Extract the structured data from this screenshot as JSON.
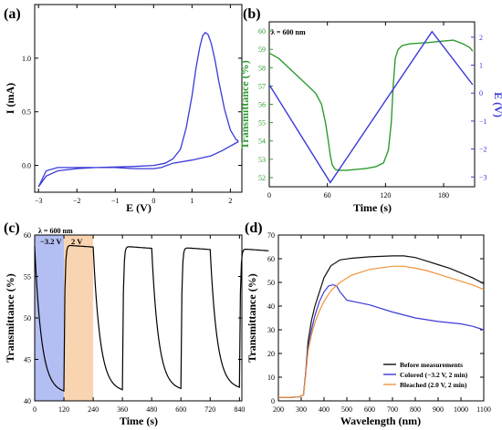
{
  "chart_data": [
    {
      "panel_label": "(a)",
      "type": "line",
      "xlabel": "E (V)",
      "ylabel": "I (mA)",
      "xlim": [
        -3.1,
        2.3
      ],
      "ylim": [
        -0.25,
        1.5
      ],
      "xticks": [
        -3,
        -2,
        -1,
        0,
        1,
        2
      ],
      "xtick_labels": [
        "−3",
        "−2",
        "−1",
        "0",
        "1",
        "2"
      ],
      "yticks": [
        0.0,
        0.5,
        1.0
      ],
      "ytick_labels": [
        "0.0",
        "0.5",
        "1.0"
      ],
      "colors": {
        "curve": "#3a3ad8"
      },
      "series": [
        {
          "x": [
            -3.0,
            -2.8,
            -2.5,
            -2.0,
            -1.5,
            -1.0,
            -0.5,
            0.0,
            0.3,
            0.5,
            0.7,
            0.85,
            1.0,
            1.1,
            1.2,
            1.28,
            1.35,
            1.42,
            1.5,
            1.6,
            1.7,
            1.85,
            2.0,
            2.15,
            2.2,
            2.2,
            2.1,
            1.8,
            1.5,
            1.0,
            0.5,
            0.2,
            0.0,
            -0.5,
            -1.0,
            -1.5,
            -2.0,
            -2.5,
            -2.8,
            -3.0
          ],
          "y": [
            -0.2,
            -0.1,
            -0.05,
            -0.03,
            -0.02,
            -0.015,
            -0.01,
            0.0,
            0.02,
            0.06,
            0.15,
            0.35,
            0.65,
            0.9,
            1.1,
            1.21,
            1.24,
            1.22,
            1.14,
            0.98,
            0.78,
            0.52,
            0.33,
            0.24,
            0.23,
            0.22,
            0.2,
            0.14,
            0.09,
            0.05,
            0.02,
            -0.02,
            -0.03,
            -0.03,
            -0.02,
            -0.02,
            -0.02,
            -0.02,
            -0.05,
            -0.2
          ]
        }
      ]
    },
    {
      "panel_label": "(b)",
      "type": "line",
      "annotation": "λ = 600 nm",
      "xlabel": "Time  (s)",
      "ylabel": "Transmittance (%)",
      "ylabel_right": "E (V)",
      "xlim": [
        0,
        212
      ],
      "ylim": [
        51.5,
        60.5
      ],
      "ylim_right": [
        -3.35,
        2.55
      ],
      "xticks": [
        0,
        60,
        120,
        180
      ],
      "xtick_labels": [
        "0",
        "60",
        "120",
        "180"
      ],
      "yticks": [
        52,
        53,
        54,
        55,
        56,
        57,
        58,
        59,
        60
      ],
      "ytick_labels": [
        "52",
        "53",
        "54",
        "55",
        "56",
        "57",
        "58",
        "59",
        "60"
      ],
      "yticks_right": [
        -3,
        -2,
        -1,
        0,
        1,
        2
      ],
      "ytick_labels_right": [
        "−3",
        "−2",
        "−1",
        "0",
        "1",
        "2"
      ],
      "colors": {
        "transmittance": "#2e9b2e",
        "potential": "#3a3ad8",
        "left_axis": "#2e9b2e",
        "right_axis": "#3a3ad8"
      },
      "series": [
        {
          "axis": "left",
          "color_key": "transmittance",
          "x": [
            0,
            10,
            20,
            30,
            40,
            48,
            54,
            58,
            61,
            63,
            65,
            68,
            72,
            80,
            90,
            100,
            110,
            118,
            123,
            126,
            128,
            130,
            133,
            137,
            145,
            160,
            170,
            180,
            190,
            200,
            207,
            210
          ],
          "y": [
            58.8,
            58.5,
            58.0,
            57.5,
            57.0,
            56.6,
            56.0,
            55.0,
            54.0,
            53.2,
            52.7,
            52.45,
            52.4,
            52.4,
            52.45,
            52.5,
            52.6,
            52.8,
            53.5,
            55.0,
            57.0,
            58.5,
            59.0,
            59.2,
            59.3,
            59.35,
            59.4,
            59.45,
            59.5,
            59.3,
            59.1,
            58.9
          ]
        },
        {
          "axis": "right",
          "color_key": "potential",
          "x": [
            0,
            63,
            168,
            210
          ],
          "y": [
            0.3,
            -3.2,
            2.2,
            0.3
          ]
        }
      ]
    },
    {
      "panel_label": "(c)",
      "type": "line",
      "annotation": "λ = 600 nm",
      "band_labels": [
        "−3.2 V",
        "2 V"
      ],
      "bands": [
        [
          0,
          120
        ],
        [
          120,
          240
        ]
      ],
      "xlabel": "Time (s)",
      "ylabel": "Transmittance (%)",
      "xlim": [
        0,
        850
      ],
      "ylim": [
        40,
        60
      ],
      "xticks": [
        0,
        120,
        240,
        360,
        480,
        600,
        720,
        840
      ],
      "xtick_labels": [
        "0",
        "120",
        "240",
        "360",
        "480",
        "600",
        "720",
        "840"
      ],
      "yticks": [
        40,
        45,
        50,
        55,
        60
      ],
      "ytick_labels": [
        "40",
        "45",
        "50",
        "55",
        "60"
      ],
      "colors": {
        "curve": "#000000",
        "band_colored": "#b3bff2",
        "band_bleached": "#f9d4b0"
      },
      "cycle": {
        "period_s": 120,
        "start_value": 58.6,
        "colored_end": 41.2,
        "bleached_plateau": 58.8,
        "bleach_rise_s": 8
      },
      "series": [
        {
          "x": [
            0,
            5,
            10,
            20,
            40,
            60,
            80,
            100,
            120,
            124,
            128,
            135,
            150,
            200,
            240,
            245,
            260,
            290,
            320,
            360,
            364,
            368,
            375,
            400,
            450,
            480,
            485,
            500,
            530,
            560,
            600,
            604,
            608,
            615,
            650,
            700,
            720,
            725,
            740,
            770,
            800,
            835
          ],
          "y": [
            58.6,
            53.5,
            50.5,
            47.5,
            44.8,
            43.3,
            42.4,
            41.8,
            41.2,
            52.0,
            58.0,
            58.8,
            58.8,
            58.7,
            58.6,
            54.0,
            48.5,
            44.8,
            42.6,
            41.3,
            52.0,
            58.0,
            58.7,
            58.7,
            58.6,
            58.5,
            54.0,
            48.5,
            44.8,
            42.8,
            41.5,
            52.0,
            58.0,
            58.5,
            58.5,
            58.4,
            58.3,
            54.0,
            48.6,
            45.0,
            43.2,
            58.2
          ]
        }
      ]
    },
    {
      "panel_label": "(d)",
      "type": "line",
      "xlabel": "Wavelength (nm)",
      "ylabel": "Transmittance (%)",
      "xlim": [
        200,
        1100
      ],
      "ylim": [
        0,
        70
      ],
      "xticks": [
        200,
        300,
        400,
        500,
        600,
        700,
        800,
        900,
        1000,
        1100
      ],
      "xtick_labels": [
        "200",
        "300",
        "400",
        "500",
        "600",
        "700",
        "800",
        "900",
        "1000",
        "1100"
      ],
      "yticks": [
        0,
        10,
        20,
        30,
        40,
        50,
        60,
        70
      ],
      "ytick_labels": [
        "0",
        "10",
        "20",
        "30",
        "40",
        "50",
        "60",
        "70"
      ],
      "legend_position": "bottom-right",
      "series": [
        {
          "name": "Before measurements",
          "color": "#111111",
          "x": [
            200,
            250,
            290,
            310,
            320,
            330,
            345,
            360,
            380,
            400,
            430,
            470,
            520,
            600,
            700,
            750,
            800,
            850,
            900,
            950,
            1000,
            1050,
            1100
          ],
          "y": [
            1.5,
            1.5,
            1.6,
            2.5,
            12,
            25,
            34,
            40,
            46,
            52,
            57,
            59.5,
            60.2,
            60.8,
            61.2,
            61.2,
            60.5,
            59,
            57.5,
            56,
            54,
            52,
            49.5
          ]
        },
        {
          "name": "Colored (−3.2 V, 2 min)",
          "color": "#3a3ad8",
          "x": [
            200,
            250,
            290,
            310,
            320,
            330,
            345,
            360,
            380,
            400,
            420,
            440,
            455,
            470,
            500,
            550,
            600,
            700,
            800,
            900,
            1000,
            1050,
            1100
          ],
          "y": [
            1.5,
            1.5,
            1.6,
            2.5,
            12,
            22,
            30,
            36,
            42,
            46,
            48.5,
            49,
            48.5,
            46,
            42.5,
            41.5,
            40.5,
            37.5,
            35,
            33.5,
            32.5,
            31.5,
            30
          ]
        },
        {
          "name": "Bleached (2.0 V, 2 min)",
          "color": "#f0933a",
          "x": [
            200,
            250,
            290,
            310,
            320,
            330,
            345,
            360,
            380,
            400,
            430,
            470,
            520,
            600,
            700,
            750,
            800,
            850,
            900,
            950,
            1000,
            1050,
            1100
          ],
          "y": [
            1.5,
            1.5,
            1.6,
            2.5,
            11,
            21,
            28,
            33,
            38,
            42,
            46.5,
            50,
            53,
            55.5,
            56.8,
            56.8,
            56,
            55,
            53.5,
            52,
            50.5,
            49,
            47
          ]
        }
      ]
    }
  ]
}
